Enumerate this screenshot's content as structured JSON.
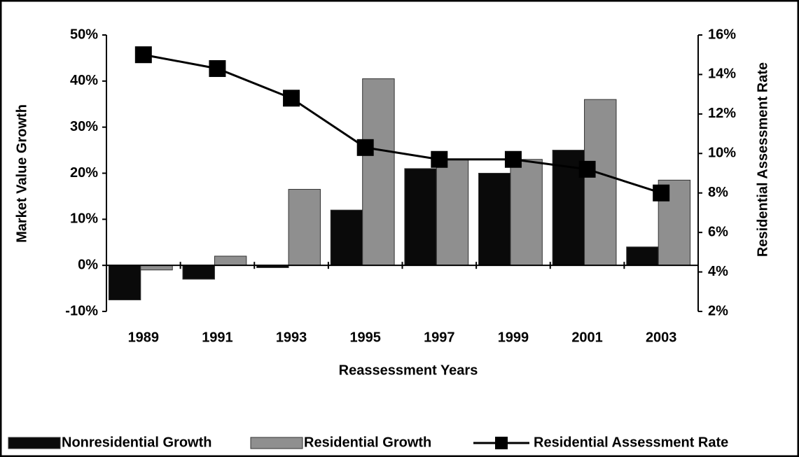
{
  "chart_data": {
    "type": "bar_line",
    "x_label": "Reassessment Years",
    "y_label": "Market Value Growth",
    "y2_label": "Residential Assessment Rate",
    "categories": [
      "1989",
      "1991",
      "1993",
      "1995",
      "1997",
      "1999",
      "2001",
      "2003"
    ],
    "series": [
      {
        "name": "Nonresidential Growth",
        "color": "#0a0a0a",
        "values": [
          -7.5,
          -3,
          -0.5,
          12,
          21,
          20,
          25,
          4
        ]
      },
      {
        "name": "Residential Growth",
        "color": "#8f8f8f",
        "values": [
          -1,
          2,
          16.5,
          40.5,
          23,
          23,
          36,
          18.5
        ]
      },
      {
        "name": "Residential Assessment Rate",
        "color": "#000000",
        "axis": "y2",
        "values": [
          15,
          14.3,
          12.8,
          10.3,
          9.7,
          9.7,
          9.2,
          8
        ]
      }
    ],
    "ylim": [
      -10,
      50
    ],
    "yticks": [
      {
        "value": -10,
        "label": "-10%"
      },
      {
        "value": 0,
        "label": "0%"
      },
      {
        "value": 10,
        "label": "10%"
      },
      {
        "value": 20,
        "label": "20%"
      },
      {
        "value": 30,
        "label": "30%"
      },
      {
        "value": 40,
        "label": "40%"
      },
      {
        "value": 50,
        "label": "50%"
      }
    ],
    "y2lim": [
      2,
      16
    ],
    "y2ticks": [
      {
        "value": 2,
        "label": "2%"
      },
      {
        "value": 4,
        "label": "4%"
      },
      {
        "value": 6,
        "label": "6%"
      },
      {
        "value": 8,
        "label": "8%"
      },
      {
        "value": 10,
        "label": "10%"
      },
      {
        "value": 12,
        "label": "12%"
      },
      {
        "value": 14,
        "label": "14%"
      },
      {
        "value": 16,
        "label": "16%"
      }
    ],
    "legend": "bottom"
  }
}
